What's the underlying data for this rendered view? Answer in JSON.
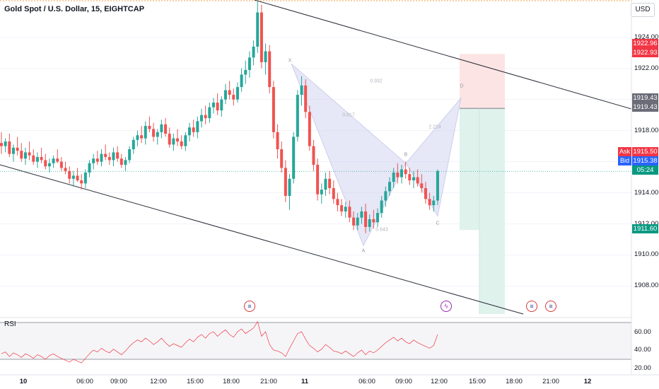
{
  "header": {
    "title": "Gold Spot / U.S. Dollar, 15, EIGHTCAP",
    "currency": "USD"
  },
  "price_axis": {
    "labels": [
      "1924.00",
      "1922.00",
      "1918.00",
      "1914.00",
      "1912.00",
      "1910.00",
      "1908.00"
    ],
    "badges": {
      "target_top": "1922.96",
      "target_bottom": "1922.93",
      "stop_top": "1919.43",
      "stop_bottom": "1919.43",
      "ask": "1915.50",
      "bid": "1915.38",
      "countdown": "05:24",
      "take_profit": "1911.60"
    },
    "ask_label": "Ask",
    "bid_label": "Bid"
  },
  "time_axis": {
    "labels": [
      {
        "text": "10",
        "bold": true
      },
      {
        "text": "06:00"
      },
      {
        "text": "09:00"
      },
      {
        "text": "12:00"
      },
      {
        "text": "15:00"
      },
      {
        "text": "18:00"
      },
      {
        "text": "21:00"
      },
      {
        "text": "11",
        "bold": true
      },
      {
        "text": "06:00"
      },
      {
        "text": "09:00"
      },
      {
        "text": "12:00"
      },
      {
        "text": "15:00"
      },
      {
        "text": "18:00"
      },
      {
        "text": "21:00"
      },
      {
        "text": "12",
        "bold": true
      }
    ]
  },
  "pattern": {
    "points": [
      "X",
      "A",
      "B",
      "C",
      "D"
    ],
    "ratios": [
      "0.617",
      "0.643",
      "2.224",
      "0.932"
    ]
  },
  "rsi": {
    "title": "RSI",
    "labels": [
      "60.00",
      "40.00",
      "20.00"
    ]
  },
  "colors": {
    "up": "#26a69a",
    "down": "#ef5350",
    "rsi_line": "#f23645",
    "pattern_fill": "#d1d4f0",
    "target_zone": "#fce4e4",
    "stop_zone": "#dff2ec",
    "trendline": "#2a2e39",
    "ask_badge": "#f23645",
    "bid_badge": "#2962ff",
    "tp_badge": "#089981",
    "stop_badge": "#6a6d78"
  },
  "chart_data": {
    "type": "candlestick",
    "symbol": "XAUUSD",
    "timeframe": "15",
    "ylim": [
      1906.2,
      1926.4
    ],
    "current_price": 1915.38,
    "ohlc": [
      [
        1917.2,
        1917.9,
        1916.5,
        1917.0
      ],
      [
        1917.0,
        1917.5,
        1916.6,
        1917.3
      ],
      [
        1917.3,
        1917.8,
        1916.3,
        1916.5
      ],
      [
        1916.5,
        1917.1,
        1916.0,
        1916.9
      ],
      [
        1916.9,
        1917.6,
        1916.4,
        1916.7
      ],
      [
        1916.7,
        1917.2,
        1916.0,
        1916.2
      ],
      [
        1916.2,
        1916.9,
        1915.8,
        1916.6
      ],
      [
        1916.6,
        1917.3,
        1916.1,
        1916.4
      ],
      [
        1916.4,
        1916.8,
        1915.8,
        1916.0
      ],
      [
        1916.0,
        1916.6,
        1915.6,
        1916.3
      ],
      [
        1916.3,
        1916.9,
        1915.9,
        1916.1
      ],
      [
        1916.1,
        1916.5,
        1915.5,
        1915.7
      ],
      [
        1915.7,
        1916.2,
        1915.3,
        1915.9
      ],
      [
        1915.9,
        1916.4,
        1915.6,
        1916.2
      ],
      [
        1916.2,
        1916.8,
        1915.9,
        1916.0
      ],
      [
        1916.0,
        1916.3,
        1915.4,
        1915.6
      ],
      [
        1915.6,
        1916.0,
        1915.2,
        1915.4
      ],
      [
        1915.4,
        1915.7,
        1914.6,
        1914.9
      ],
      [
        1914.9,
        1915.4,
        1914.4,
        1915.1
      ],
      [
        1915.1,
        1915.6,
        1914.7,
        1914.8
      ],
      [
        1914.8,
        1915.2,
        1914.2,
        1914.6
      ],
      [
        1914.6,
        1915.5,
        1914.3,
        1915.3
      ],
      [
        1915.3,
        1916.1,
        1915.0,
        1915.9
      ],
      [
        1915.9,
        1916.5,
        1915.5,
        1916.2
      ],
      [
        1916.2,
        1916.7,
        1915.8,
        1916.0
      ],
      [
        1916.0,
        1916.8,
        1915.7,
        1916.5
      ],
      [
        1916.5,
        1917.1,
        1916.1,
        1916.3
      ],
      [
        1916.3,
        1916.6,
        1915.8,
        1916.1
      ],
      [
        1916.1,
        1916.9,
        1915.7,
        1916.6
      ],
      [
        1916.6,
        1917.0,
        1916.0,
        1916.2
      ],
      [
        1916.2,
        1916.5,
        1915.6,
        1915.8
      ],
      [
        1915.8,
        1916.3,
        1915.4,
        1916.1
      ],
      [
        1916.1,
        1917.0,
        1915.9,
        1916.8
      ],
      [
        1916.8,
        1917.6,
        1916.5,
        1917.4
      ],
      [
        1917.4,
        1918.0,
        1917.0,
        1917.7
      ],
      [
        1917.7,
        1918.3,
        1917.2,
        1917.5
      ],
      [
        1917.5,
        1918.6,
        1917.1,
        1918.3
      ],
      [
        1918.3,
        1918.9,
        1917.9,
        1918.1
      ],
      [
        1918.1,
        1918.5,
        1917.3,
        1917.6
      ],
      [
        1917.6,
        1918.1,
        1917.1,
        1917.9
      ],
      [
        1917.9,
        1918.7,
        1917.5,
        1918.4
      ],
      [
        1918.4,
        1918.8,
        1917.6,
        1917.8
      ],
      [
        1917.8,
        1918.2,
        1916.9,
        1917.1
      ],
      [
        1917.1,
        1917.8,
        1916.7,
        1917.5
      ],
      [
        1917.5,
        1918.1,
        1917.0,
        1917.3
      ],
      [
        1917.3,
        1917.7,
        1916.8,
        1917.0
      ],
      [
        1917.0,
        1917.9,
        1916.7,
        1917.7
      ],
      [
        1917.7,
        1918.5,
        1917.3,
        1918.2
      ],
      [
        1918.2,
        1918.7,
        1917.6,
        1917.9
      ],
      [
        1917.9,
        1918.9,
        1917.5,
        1918.6
      ],
      [
        1918.6,
        1919.4,
        1918.2,
        1919.0
      ],
      [
        1919.0,
        1919.6,
        1918.4,
        1918.8
      ],
      [
        1918.8,
        1919.8,
        1918.5,
        1919.5
      ],
      [
        1919.5,
        1920.1,
        1919.1,
        1919.8
      ],
      [
        1919.8,
        1920.4,
        1919.0,
        1919.3
      ],
      [
        1919.3,
        1920.2,
        1918.9,
        1920.0
      ],
      [
        1920.0,
        1921.0,
        1919.7,
        1920.6
      ],
      [
        1920.6,
        1921.2,
        1920.0,
        1920.3
      ],
      [
        1920.3,
        1920.7,
        1919.6,
        1920.0
      ],
      [
        1920.0,
        1921.1,
        1919.8,
        1920.8
      ],
      [
        1920.8,
        1922.0,
        1920.5,
        1921.6
      ],
      [
        1921.6,
        1922.5,
        1921.0,
        1921.9
      ],
      [
        1921.9,
        1923.1,
        1921.4,
        1922.7
      ],
      [
        1922.7,
        1923.8,
        1922.2,
        1923.4
      ],
      [
        1923.4,
        1926.3,
        1923.0,
        1925.6
      ],
      [
        1925.6,
        1926.1,
        1922.0,
        1922.4
      ],
      [
        1922.4,
        1923.6,
        1921.6,
        1923.1
      ],
      [
        1923.1,
        1923.5,
        1920.4,
        1920.8
      ],
      [
        1920.8,
        1921.2,
        1917.5,
        1917.9
      ],
      [
        1917.9,
        1918.4,
        1916.2,
        1916.8
      ],
      [
        1916.8,
        1917.3,
        1915.3,
        1915.6
      ],
      [
        1915.6,
        1916.1,
        1913.4,
        1913.8
      ],
      [
        1913.8,
        1915.2,
        1912.9,
        1914.9
      ],
      [
        1914.9,
        1917.9,
        1914.6,
        1917.6
      ],
      [
        1917.6,
        1920.6,
        1917.3,
        1920.3
      ],
      [
        1920.3,
        1921.5,
        1919.6,
        1920.9
      ],
      [
        1920.9,
        1921.3,
        1918.8,
        1919.2
      ],
      [
        1919.2,
        1919.6,
        1916.7,
        1917.0
      ],
      [
        1917.0,
        1917.4,
        1915.4,
        1915.8
      ],
      [
        1915.8,
        1916.2,
        1913.5,
        1913.9
      ],
      [
        1913.9,
        1914.6,
        1913.3,
        1914.2
      ],
      [
        1914.2,
        1915.3,
        1913.8,
        1914.9
      ],
      [
        1914.9,
        1915.4,
        1913.9,
        1914.3
      ],
      [
        1914.3,
        1914.8,
        1913.3,
        1913.6
      ],
      [
        1913.6,
        1914.0,
        1912.8,
        1913.2
      ],
      [
        1913.2,
        1913.6,
        1912.5,
        1912.8
      ],
      [
        1912.8,
        1913.4,
        1912.4,
        1913.1
      ],
      [
        1913.1,
        1913.5,
        1912.1,
        1912.4
      ],
      [
        1912.4,
        1912.8,
        1911.6,
        1911.9
      ],
      [
        1911.9,
        1912.7,
        1911.6,
        1912.4
      ],
      [
        1912.4,
        1913.1,
        1912.0,
        1912.8
      ],
      [
        1912.8,
        1913.3,
        1911.4,
        1911.8
      ],
      [
        1911.8,
        1912.6,
        1911.5,
        1912.3
      ],
      [
        1912.3,
        1912.9,
        1911.7,
        1912.1
      ],
      [
        1912.1,
        1913.0,
        1911.8,
        1912.7
      ],
      [
        1912.7,
        1913.8,
        1912.4,
        1913.5
      ],
      [
        1913.5,
        1914.4,
        1913.1,
        1914.1
      ],
      [
        1914.1,
        1915.0,
        1913.8,
        1914.7
      ],
      [
        1914.7,
        1915.6,
        1914.3,
        1915.3
      ],
      [
        1915.3,
        1915.9,
        1914.6,
        1915.0
      ],
      [
        1915.0,
        1915.8,
        1914.6,
        1915.5
      ],
      [
        1915.5,
        1916.0,
        1914.9,
        1915.2
      ],
      [
        1915.2,
        1915.6,
        1914.5,
        1914.8
      ],
      [
        1914.8,
        1915.4,
        1914.3,
        1915.0
      ],
      [
        1915.0,
        1915.5,
        1914.4,
        1914.6
      ],
      [
        1914.6,
        1915.2,
        1914.0,
        1914.3
      ],
      [
        1914.3,
        1914.7,
        1913.3,
        1913.6
      ],
      [
        1913.6,
        1914.0,
        1912.9,
        1913.2
      ],
      [
        1913.2,
        1913.8,
        1912.8,
        1913.5
      ],
      [
        1913.5,
        1915.5,
        1913.2,
        1915.4
      ]
    ],
    "rsi": {
      "values": [
        36,
        38,
        33,
        37,
        35,
        32,
        36,
        34,
        31,
        35,
        33,
        30,
        34,
        36,
        33,
        31,
        29,
        27,
        30,
        28,
        26,
        31,
        36,
        40,
        38,
        42,
        39,
        37,
        41,
        38,
        35,
        39,
        44,
        48,
        51,
        49,
        53,
        50,
        46,
        49,
        53,
        48,
        44,
        47,
        45,
        43,
        48,
        52,
        49,
        54,
        57,
        53,
        58,
        60,
        55,
        59,
        62,
        57,
        54,
        60,
        63,
        58,
        61,
        64,
        71,
        55,
        60,
        46,
        40,
        39,
        37,
        33,
        42,
        50,
        58,
        60,
        52,
        45,
        42,
        38,
        41,
        46,
        43,
        39,
        38,
        36,
        39,
        36,
        33,
        37,
        40,
        35,
        39,
        37,
        40,
        44,
        48,
        51,
        54,
        50,
        53,
        49,
        47,
        51,
        48,
        46,
        44,
        42,
        45,
        57
      ]
    },
    "annotations": {
      "harmonic_points": [
        "X",
        "A",
        "B",
        "C",
        "D"
      ],
      "fib_ratios": [
        "0.617",
        "0.643",
        "2.224",
        "0.932"
      ],
      "trade_target_price": 1922.93,
      "trade_entry_price": 1919.43,
      "trade_take_profit": 1911.6
    }
  }
}
